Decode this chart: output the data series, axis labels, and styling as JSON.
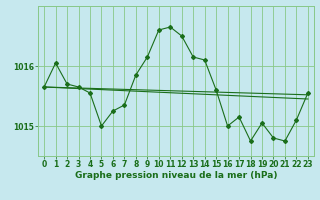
{
  "xlabel": "Graphe pression niveau de la mer (hPa)",
  "background_color": "#c6e8ee",
  "plot_bg_color": "#c6e8ee",
  "line_color": "#1a6e1a",
  "grid_color": "#88c888",
  "text_color": "#1a6e1a",
  "xlim": [
    -0.5,
    23.5
  ],
  "ylim": [
    1014.5,
    1017.0
  ],
  "yticks": [
    1015,
    1016
  ],
  "xticks": [
    0,
    1,
    2,
    3,
    4,
    5,
    6,
    7,
    8,
    9,
    10,
    11,
    12,
    13,
    14,
    15,
    16,
    17,
    18,
    19,
    20,
    21,
    22,
    23
  ],
  "series": [
    {
      "x": [
        0,
        1,
        2,
        3,
        4,
        5,
        6,
        7,
        8,
        9,
        10,
        11,
        12,
        13,
        14,
        15,
        16,
        17,
        18,
        19,
        20,
        21,
        22,
        23
      ],
      "y": [
        1015.65,
        1016.05,
        1015.7,
        1015.65,
        1015.55,
        1015.0,
        1015.25,
        1015.35,
        1015.85,
        1016.15,
        1016.6,
        1016.65,
        1016.5,
        1016.15,
        1016.1,
        1015.6,
        1015.0,
        1015.15,
        1014.75,
        1015.05,
        1014.8,
        1014.75,
        1015.1,
        1015.55
      ]
    },
    {
      "x": [
        0,
        23
      ],
      "y": [
        1015.65,
        1015.52
      ]
    },
    {
      "x": [
        0,
        23
      ],
      "y": [
        1015.65,
        1015.45
      ]
    }
  ],
  "tick_fontsize": 5.5,
  "label_fontsize": 6.5,
  "marker": "D",
  "markersize": 2.0,
  "linewidth": 0.8
}
